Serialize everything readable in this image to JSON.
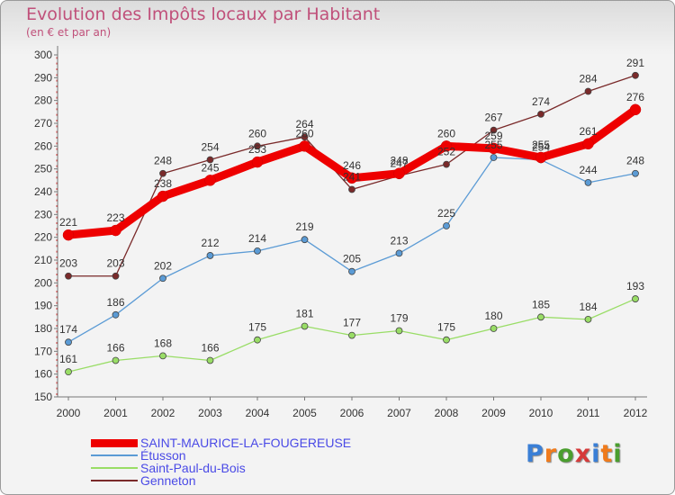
{
  "header": {
    "title": "Evolution des Impôts locaux par Habitant",
    "subtitle": "(en € et par an)"
  },
  "logo": {
    "text": "Proxiti",
    "colors": [
      "#3a7fd6",
      "#f07b1c",
      "#4a9e2e",
      "#d63a3a",
      "#3a7fd6",
      "#f07b1c",
      "#4a9e2e"
    ]
  },
  "chart_data": {
    "type": "line",
    "title": "Evolution des Impôts locaux par Habitant",
    "subtitle": "(en € et par an)",
    "x": [
      "2000",
      "2001",
      "2002",
      "2003",
      "2004",
      "2005",
      "2006",
      "2007",
      "2008",
      "2009",
      "2010",
      "2011",
      "2012"
    ],
    "ylim": [
      150,
      300
    ],
    "yticks": [
      150,
      160,
      170,
      180,
      190,
      200,
      210,
      220,
      230,
      240,
      250,
      260,
      270,
      280,
      290,
      300
    ],
    "grid": false,
    "legend_position": "bottom-left",
    "series": [
      {
        "name": "SAINT-MAURICE-LA-FOUGEREUSE",
        "color": "#ee0000",
        "values": [
          221,
          223,
          238,
          245,
          253,
          260,
          246,
          248,
          260,
          259,
          255,
          261,
          276
        ]
      },
      {
        "name": "Étusson",
        "color": "#5b9bd5",
        "values": [
          174,
          186,
          202,
          212,
          214,
          219,
          205,
          213,
          225,
          255,
          254,
          244,
          248
        ]
      },
      {
        "name": "Saint-Paul-du-Bois",
        "color": "#99dd66",
        "values": [
          161,
          166,
          168,
          166,
          175,
          181,
          177,
          179,
          175,
          180,
          185,
          184,
          193
        ]
      },
      {
        "name": "Genneton",
        "color": "#7a2a2a",
        "values": [
          203,
          203,
          248,
          254,
          260,
          264,
          241,
          247,
          252,
          267,
          274,
          284,
          291
        ]
      }
    ]
  }
}
